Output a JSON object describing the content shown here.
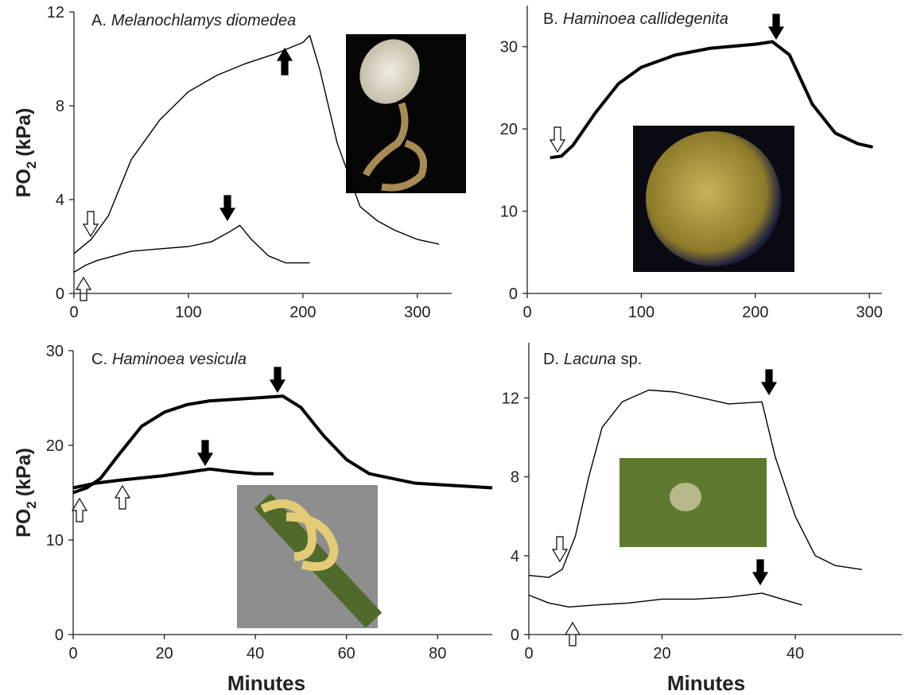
{
  "chart_data": [
    {
      "type": "line",
      "title": [
        {
          "text": "A.",
          "italic": false
        },
        {
          "text": "Melanochlamys diomedea",
          "italic": true
        }
      ],
      "ylabel": {
        "main": "PO",
        "sub": "2",
        "unit": "(kPa)"
      },
      "xlim": [
        0,
        330
      ],
      "ylim": [
        0,
        12
      ],
      "xticks": [
        0,
        100,
        200,
        300
      ],
      "yticks": [
        0,
        4,
        8,
        12
      ],
      "series": [
        {
          "color": "#000000",
          "x": [
            0,
            15,
            30,
            50,
            75,
            100,
            125,
            150,
            175,
            200,
            206,
            215,
            230,
            250,
            265,
            280,
            300,
            319
          ],
          "values": [
            1.7,
            2.3,
            3.3,
            5.7,
            7.4,
            8.6,
            9.3,
            9.8,
            10.2,
            10.7,
            11,
            9.5,
            6.4,
            3.7,
            3.1,
            2.7,
            2.3,
            2.1
          ]
        },
        {
          "color": "#000000",
          "x": [
            0,
            10,
            20,
            35,
            50,
            75,
            100,
            120,
            135,
            145,
            155,
            170,
            185,
            206
          ],
          "values": [
            0.9,
            1.2,
            1.4,
            1.6,
            1.8,
            1.9,
            2.0,
            2.2,
            2.6,
            2.9,
            2.3,
            1.6,
            1.3,
            1.3
          ]
        }
      ]
    },
    {
      "type": "line",
      "title": [
        {
          "text": "B.",
          "italic": false
        },
        {
          "text": "Haminoea callidegenita",
          "italic": true
        }
      ],
      "xlim": [
        0,
        311
      ],
      "ylim": [
        0,
        35
      ],
      "xticks": [
        0,
        100,
        200,
        300
      ],
      "yticks": [
        0,
        10,
        20,
        30
      ],
      "series": [
        {
          "color": "#000000",
          "x": [
            20,
            30,
            40,
            60,
            80,
            100,
            130,
            160,
            200,
            215,
            230,
            250,
            270,
            290,
            303
          ],
          "values": [
            16.5,
            16.7,
            18,
            22,
            25.5,
            27.5,
            29,
            29.8,
            30.3,
            30.6,
            29,
            23,
            19.5,
            18.2,
            17.8
          ]
        }
      ]
    },
    {
      "type": "line",
      "title": [
        {
          "text": "C.",
          "italic": false
        },
        {
          "text": "Haminoea vesicula",
          "italic": true
        }
      ],
      "ylabel": {
        "main": "PO",
        "sub": "2",
        "unit": "(kPa)"
      },
      "xlabel": "Minutes",
      "xlim": [
        0,
        92
      ],
      "ylim": [
        0,
        30
      ],
      "xticks": [
        0,
        20,
        40,
        60,
        80
      ],
      "yticks": [
        0,
        10,
        20,
        30
      ],
      "series": [
        {
          "color": "#000000",
          "x": [
            0,
            3,
            6,
            10,
            15,
            20,
            25,
            30,
            40,
            46,
            50,
            55,
            60,
            65,
            75,
            92
          ],
          "values": [
            15,
            15.5,
            16.5,
            19,
            22,
            23.5,
            24.3,
            24.7,
            25,
            25.2,
            24,
            21,
            18.5,
            17,
            16,
            15.5
          ]
        },
        {
          "color": "#000000",
          "x": [
            0,
            5,
            10,
            20,
            30,
            35,
            40,
            44
          ],
          "values": [
            15.5,
            16,
            16.3,
            16.8,
            17.5,
            17.2,
            17,
            17
          ]
        }
      ]
    },
    {
      "type": "line",
      "title": [
        {
          "text": "D.",
          "italic": false
        },
        {
          "text": "Lacuna",
          "italic": true
        },
        {
          "text": "sp.",
          "italic": false
        }
      ],
      "xlabel": "Minutes",
      "xlim": [
        0,
        56
      ],
      "ylim": [
        0,
        14.8
      ],
      "xticks": [
        0,
        20,
        40
      ],
      "yticks": [
        0,
        4,
        8,
        12
      ],
      "series": [
        {
          "color": "#000000",
          "x": [
            0,
            3,
            5,
            7,
            9,
            11,
            14,
            18,
            22,
            26,
            30,
            35,
            37,
            40,
            43,
            46,
            50
          ],
          "values": [
            3,
            2.9,
            3.3,
            5,
            8,
            10.5,
            11.8,
            12.4,
            12.3,
            12,
            11.7,
            11.8,
            9,
            6,
            4,
            3.5,
            3.3
          ]
        },
        {
          "color": "#000000",
          "x": [
            0,
            3,
            6,
            10,
            15,
            20,
            25,
            30,
            35,
            38,
            41
          ],
          "values": [
            2,
            1.6,
            1.4,
            1.5,
            1.6,
            1.8,
            1.8,
            1.9,
            2.1,
            1.8,
            1.5
          ]
        }
      ]
    }
  ]
}
